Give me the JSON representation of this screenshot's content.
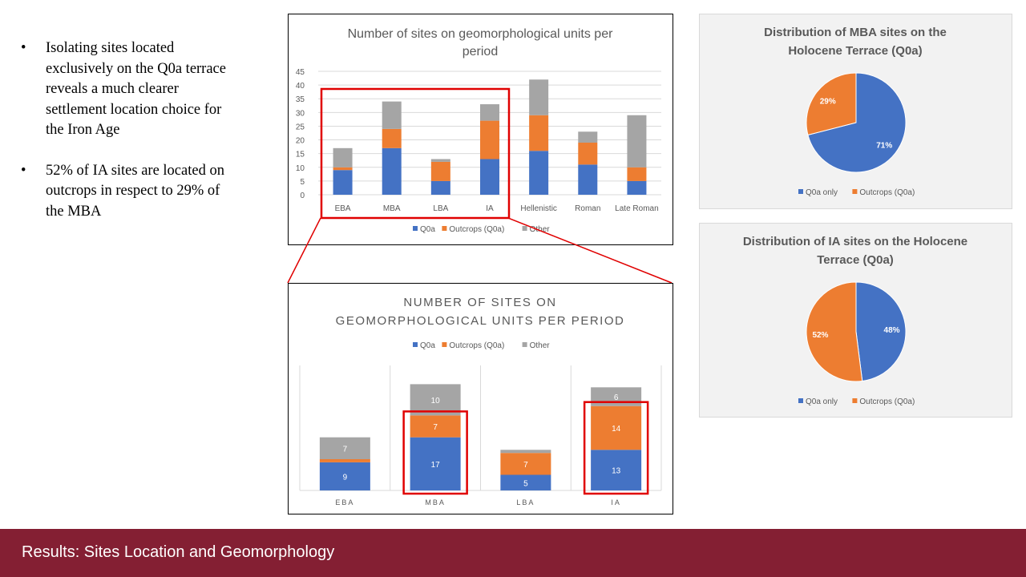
{
  "bullets": [
    "Isolating sites located exclusively on the Q0a terrace reveals a much clearer settlement location choice for the Iron Age",
    "52% of IA sites are located on outcrops in respect to 29% of the MBA"
  ],
  "footer": {
    "title": "Results: Sites Location and Geomorphology"
  },
  "colors": {
    "q0a": "#4472c4",
    "outcrops": "#ed7d31",
    "other": "#a5a5a5",
    "highlight": "#e00000",
    "footer": "#841f33"
  },
  "chart_data": [
    {
      "type": "bar",
      "stacked": true,
      "title": "Number of sites on geomorphological units per period",
      "categories": [
        "EBA",
        "MBA",
        "LBA",
        "IA",
        "Hellenistic",
        "Roman",
        "Late Roman"
      ],
      "series": [
        {
          "name": "Q0a",
          "values": [
            9,
            17,
            5,
            13,
            16,
            11,
            5
          ]
        },
        {
          "name": "Outcrops (Q0a)",
          "values": [
            1,
            7,
            7,
            14,
            13,
            8,
            5
          ]
        },
        {
          "name": "Other",
          "values": [
            7,
            10,
            1,
            6,
            13,
            4,
            19
          ]
        }
      ],
      "ylim": [
        0,
        45
      ],
      "yticks": [
        0,
        5,
        10,
        15,
        20,
        25,
        30,
        35,
        40,
        45
      ],
      "legend": "bottom",
      "grid": true
    },
    {
      "type": "bar",
      "stacked": true,
      "title": "NUMBER OF SITES ON GEOMORPHOLOGICAL UNITS PER PERIOD",
      "categories": [
        "EBA",
        "MBA",
        "LBA",
        "IA"
      ],
      "series": [
        {
          "name": "Q0a",
          "values": [
            9,
            17,
            5,
            13
          ]
        },
        {
          "name": "Outcrops (Q0a)",
          "values": [
            1,
            7,
            7,
            14
          ]
        },
        {
          "name": "Other",
          "values": [
            7,
            10,
            1,
            6
          ]
        }
      ],
      "legend": "top",
      "highlighted_categories": [
        "MBA",
        "IA"
      ]
    },
    {
      "type": "pie",
      "title": "Distribution of MBA sites on the Holocene Terrace (Q0a)",
      "slices": [
        {
          "name": "Q0a only",
          "value": 71,
          "label": "71%"
        },
        {
          "name": "Outcrops (Q0a)",
          "value": 29,
          "label": "29%"
        }
      ],
      "legend": "bottom"
    },
    {
      "type": "pie",
      "title": "Distribution of IA sites on the Holocene Terrace (Q0a)",
      "slices": [
        {
          "name": "Q0a only",
          "value": 48,
          "label": "48%"
        },
        {
          "name": "Outcrops (Q0a)",
          "value": 52,
          "label": "52%"
        }
      ],
      "legend": "bottom"
    }
  ]
}
